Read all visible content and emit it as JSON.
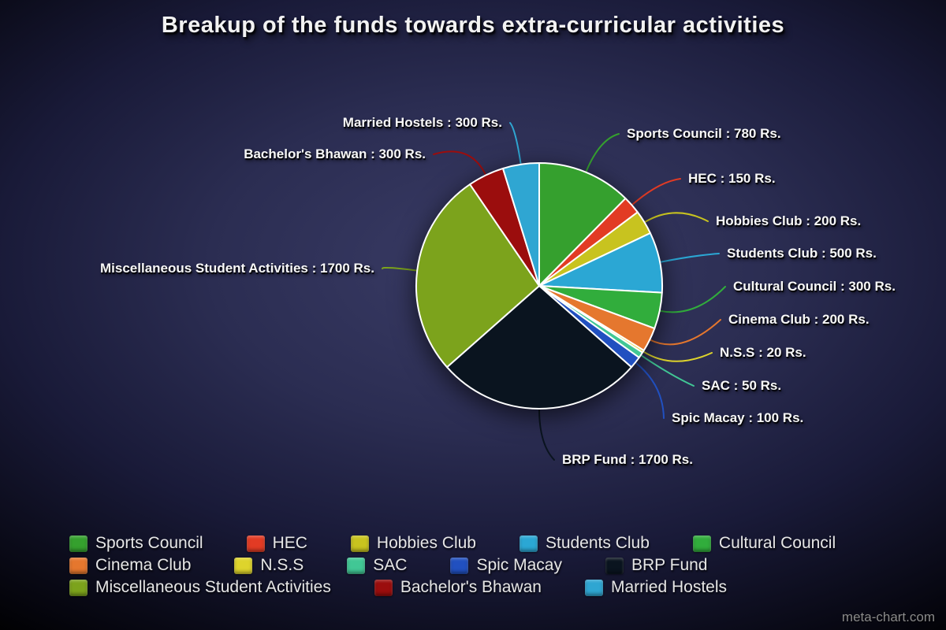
{
  "title": "Breakup of the funds towards extra-curricular activities",
  "watermark": "meta-chart.com",
  "chart_data": {
    "type": "pie",
    "title": "Breakup of the funds towards extra-curricular activities",
    "unit": "Rs.",
    "legend_position": "bottom",
    "label_format": "{label} : {value} Rs.",
    "slices": [
      {
        "label": "Sports Council",
        "value": 780,
        "color": "#35a02e"
      },
      {
        "label": "HEC",
        "value": 150,
        "color": "#e23b24"
      },
      {
        "label": "Hobbies Club",
        "value": 200,
        "color": "#c8c31f"
      },
      {
        "label": "Students Club",
        "value": 500,
        "color": "#2ba7d4"
      },
      {
        "label": "Cultural Council",
        "value": 300,
        "color": "#31ad3c"
      },
      {
        "label": "Cinema Club",
        "value": 200,
        "color": "#e5772e"
      },
      {
        "label": "N.S.S",
        "value": 20,
        "color": "#ded42c"
      },
      {
        "label": "SAC",
        "value": 50,
        "color": "#41c795"
      },
      {
        "label": "Spic Macay",
        "value": 100,
        "color": "#2150c0"
      },
      {
        "label": "BRP Fund",
        "value": 1700,
        "color": "#0a141f"
      },
      {
        "label": "Miscellaneous Student Activities",
        "value": 1700,
        "color": "#7ca31c"
      },
      {
        "label": "Bachelor's Bhawan",
        "value": 300,
        "color": "#9b0d0d"
      },
      {
        "label": "Married Hostels",
        "value": 300,
        "color": "#2fa6d2"
      }
    ]
  }
}
